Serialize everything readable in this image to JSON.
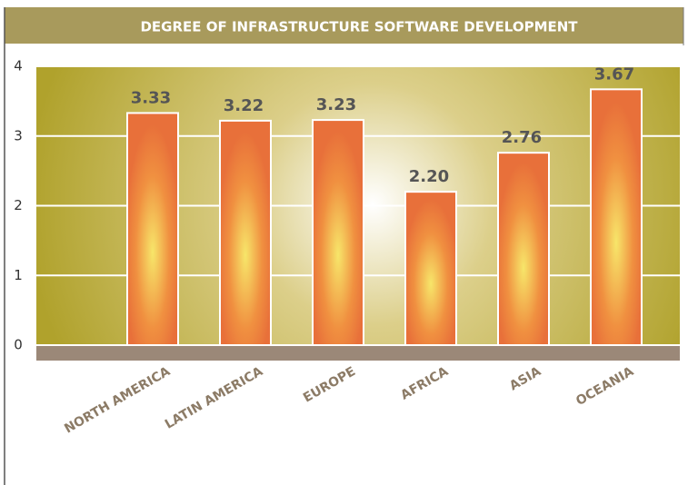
{
  "chart_data": {
    "type": "bar",
    "title": "DEGREE OF INFRASTRUCTURE SOFTWARE DEVELOPMENT",
    "categories": [
      "NORTH AMERICA",
      "LATIN AMERICA",
      "EUROPE",
      "AFRICA",
      "ASIA",
      "OCEANIA"
    ],
    "values": [
      3.33,
      3.22,
      3.23,
      2.2,
      2.76,
      3.67
    ],
    "value_labels": [
      "3.33",
      "3.22",
      "3.23",
      "2.20",
      "2.76",
      "3.67"
    ],
    "color": "#e8703a",
    "ylim": [
      0,
      4
    ],
    "yticks": [
      0,
      1,
      2,
      3,
      4
    ],
    "grid": true
  }
}
